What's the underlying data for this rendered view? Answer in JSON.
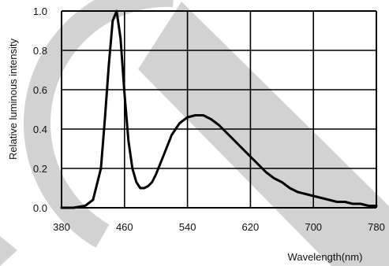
{
  "chart_data": {
    "type": "line",
    "title": "",
    "xlabel": "Wavelength(nm)",
    "ylabel": "Relative luminous intensity",
    "xlim": [
      380,
      780
    ],
    "ylim": [
      0.0,
      1.0
    ],
    "xticks": [
      "380",
      "460",
      "540",
      "620",
      "700",
      "780"
    ],
    "yticks": [
      "0.0",
      "0.2",
      "0.4",
      "0.6",
      "0.8",
      "1.0"
    ],
    "grid": true,
    "legend": "none",
    "series": [
      {
        "color": "#000000",
        "x": [
          380,
          395,
          410,
          420,
          430,
          435,
          440,
          445,
          450,
          455,
          460,
          465,
          470,
          475,
          480,
          485,
          490,
          495,
          500,
          510,
          520,
          530,
          540,
          550,
          560,
          570,
          580,
          590,
          600,
          610,
          620,
          630,
          640,
          650,
          660,
          670,
          680,
          690,
          700,
          710,
          720,
          730,
          740,
          750,
          760,
          770,
          780
        ],
        "y": [
          0.0,
          0.0,
          0.01,
          0.04,
          0.2,
          0.45,
          0.72,
          0.95,
          1.0,
          0.86,
          0.58,
          0.34,
          0.2,
          0.13,
          0.1,
          0.1,
          0.11,
          0.13,
          0.17,
          0.27,
          0.37,
          0.43,
          0.46,
          0.47,
          0.47,
          0.45,
          0.42,
          0.38,
          0.34,
          0.3,
          0.26,
          0.22,
          0.18,
          0.15,
          0.13,
          0.1,
          0.08,
          0.07,
          0.06,
          0.05,
          0.04,
          0.03,
          0.03,
          0.02,
          0.02,
          0.01,
          0.01
        ]
      }
    ]
  },
  "colors": {
    "line": "#000000",
    "grid": "#000000",
    "watermark": "#d2d2d2"
  }
}
